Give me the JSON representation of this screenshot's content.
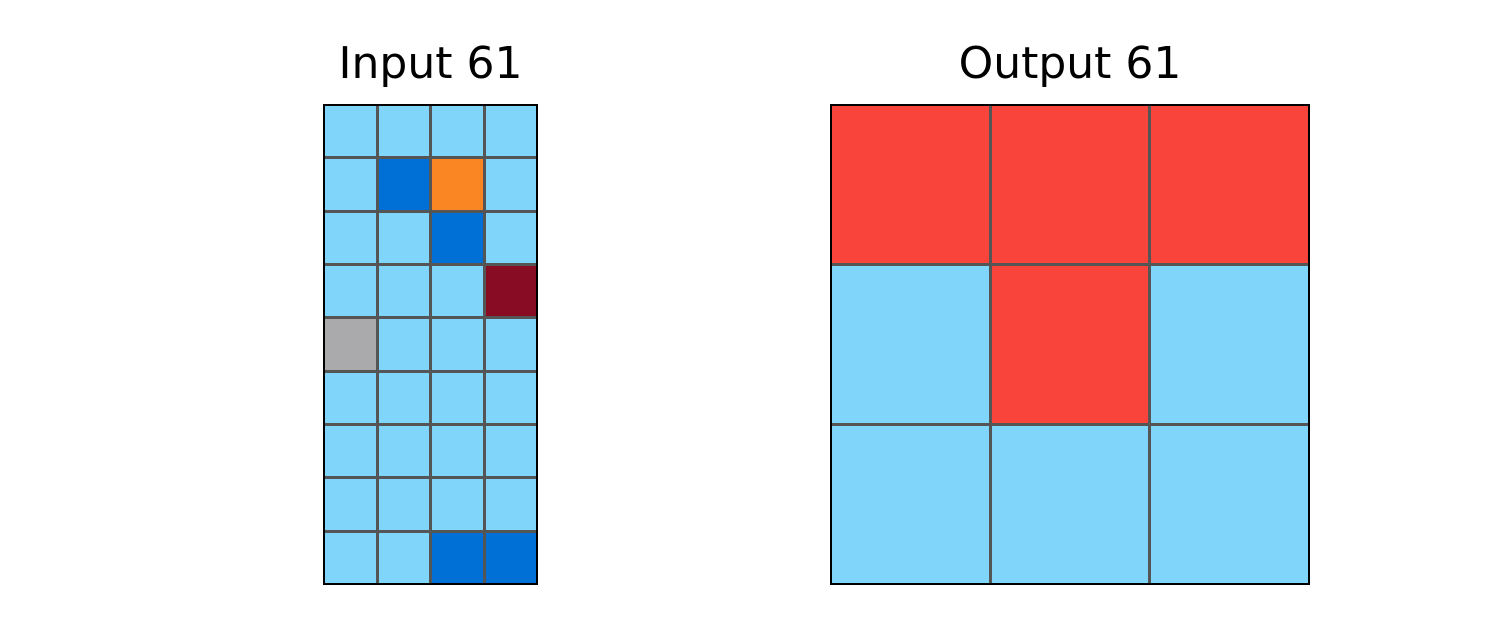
{
  "input_panel": {
    "title": "Input 61",
    "grid": [
      [
        "light-blue",
        "light-blue",
        "light-blue",
        "light-blue"
      ],
      [
        "light-blue",
        "blue",
        "orange",
        "light-blue"
      ],
      [
        "light-blue",
        "light-blue",
        "blue",
        "light-blue"
      ],
      [
        "light-blue",
        "light-blue",
        "light-blue",
        "maroon"
      ],
      [
        "gray",
        "light-blue",
        "light-blue",
        "light-blue"
      ],
      [
        "light-blue",
        "light-blue",
        "light-blue",
        "light-blue"
      ],
      [
        "light-blue",
        "light-blue",
        "light-blue",
        "light-blue"
      ],
      [
        "light-blue",
        "light-blue",
        "light-blue",
        "light-blue"
      ],
      [
        "light-blue",
        "light-blue",
        "blue",
        "blue"
      ]
    ]
  },
  "output_panel": {
    "title": "Output 61",
    "grid": [
      [
        "red",
        "red",
        "red"
      ],
      [
        "light-blue",
        "red",
        "light-blue"
      ],
      [
        "light-blue",
        "light-blue",
        "light-blue"
      ]
    ]
  },
  "palette": {
    "light-blue": "#7fd6fa",
    "blue": "#0070d6",
    "orange": "#fa8523",
    "maroon": "#870c24",
    "gray": "#aaa9ab",
    "red": "#f9443b"
  }
}
